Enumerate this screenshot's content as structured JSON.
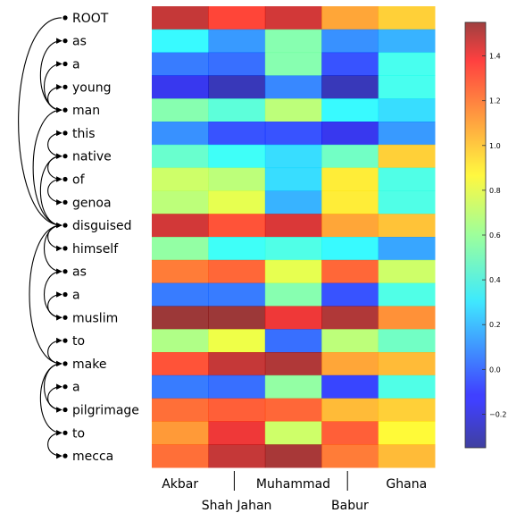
{
  "chart_data": {
    "type": "heatmap",
    "title": "",
    "xlabel": "",
    "ylabel": "",
    "rows": [
      "ROOT",
      "as",
      "a",
      "young",
      "man",
      "this",
      "native",
      "of",
      "genoa",
      "disguised",
      "himself",
      "as",
      "a",
      "muslim",
      "to",
      "make",
      "a",
      "pilgrimage",
      "to",
      "mecca"
    ],
    "columns": [
      "Akbar",
      "Shah Jahan",
      "Muhammad",
      "Babur",
      "Ghana"
    ],
    "column_label_rows": [
      0,
      1,
      0,
      1,
      0
    ],
    "colorscale": "jet",
    "vmin": -0.35,
    "vmax": 1.55,
    "colorbar_ticks": [
      -0.2,
      0.0,
      0.2,
      0.4,
      0.6,
      0.8,
      1.0,
      1.2,
      1.4
    ],
    "colorbar_tick_labels": [
      "−0.2",
      "0.0",
      "0.2",
      "0.4",
      "0.6",
      "0.8",
      "1.0",
      "1.2",
      "1.4"
    ],
    "values": [
      [
        1.45,
        1.28,
        1.42,
        1.05,
        0.95
      ],
      [
        0.35,
        0.12,
        0.55,
        0.1,
        0.18
      ],
      [
        0.05,
        0.02,
        0.55,
        -0.05,
        0.4
      ],
      [
        -0.15,
        -0.28,
        0.08,
        -0.28,
        0.4
      ],
      [
        0.55,
        0.45,
        0.68,
        0.35,
        0.28
      ],
      [
        0.1,
        -0.05,
        -0.05,
        -0.15,
        0.12
      ],
      [
        0.48,
        0.38,
        0.28,
        0.5,
        0.95
      ],
      [
        0.72,
        0.68,
        0.28,
        0.88,
        0.42
      ],
      [
        0.68,
        0.78,
        0.18,
        0.88,
        0.42
      ],
      [
        1.42,
        1.25,
        1.4,
        1.05,
        0.98
      ],
      [
        0.58,
        0.38,
        0.42,
        0.35,
        0.15
      ],
      [
        1.15,
        1.2,
        0.78,
        1.2,
        0.72
      ],
      [
        0.05,
        0.05,
        0.55,
        -0.05,
        0.42
      ],
      [
        1.55,
        1.7,
        1.35,
        1.5,
        1.1
      ],
      [
        0.65,
        0.8,
        0.02,
        0.68,
        0.5
      ],
      [
        1.25,
        1.45,
        1.5,
        1.05,
        1.0
      ],
      [
        0.05,
        0.02,
        0.58,
        -0.08,
        0.42
      ],
      [
        1.18,
        1.22,
        1.2,
        1.0,
        0.95
      ],
      [
        1.08,
        1.35,
        0.72,
        1.22,
        0.85
      ],
      [
        1.18,
        1.45,
        1.52,
        1.15,
        1.0
      ]
    ],
    "dependency_arcs": [
      {
        "head": 0,
        "dep": 9
      },
      {
        "head": 4,
        "dep": 1
      },
      {
        "head": 4,
        "dep": 2
      },
      {
        "head": 4,
        "dep": 3
      },
      {
        "head": 9,
        "dep": 4
      },
      {
        "head": 6,
        "dep": 5
      },
      {
        "head": 9,
        "dep": 6
      },
      {
        "head": 6,
        "dep": 7
      },
      {
        "head": 7,
        "dep": 8
      },
      {
        "head": 9,
        "dep": 10
      },
      {
        "head": 9,
        "dep": 11
      },
      {
        "head": 11,
        "dep": 13
      },
      {
        "head": 13,
        "dep": 12
      },
      {
        "head": 15,
        "dep": 14
      },
      {
        "head": 9,
        "dep": 15
      },
      {
        "head": 17,
        "dep": 16
      },
      {
        "head": 15,
        "dep": 17
      },
      {
        "head": 15,
        "dep": 18
      },
      {
        "head": 18,
        "dep": 19
      }
    ]
  }
}
